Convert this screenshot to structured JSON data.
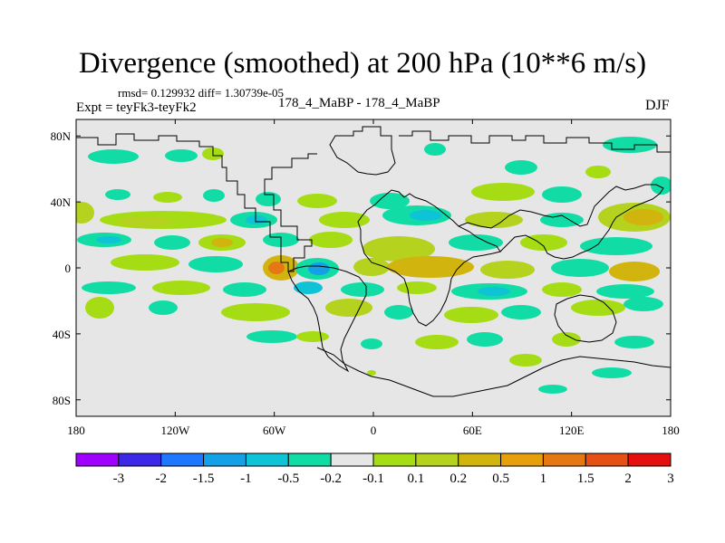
{
  "title": "Divergence (smoothed) at 200 hPa (10**6 m/s)",
  "stats": "rmsd= 0.129932 diff= 1.30739e-05",
  "experiment": "Expt = teyFk3-teyFk2",
  "runs": "178_4_MaBP - 178_4_MaBP",
  "season": "DJF",
  "map": {
    "lat_range": [
      -90,
      90
    ],
    "lon_range": [
      -180,
      180
    ],
    "lat_ticks": [
      {
        "value": 80,
        "label": "80N"
      },
      {
        "value": 40,
        "label": "40N"
      },
      {
        "value": 0,
        "label": "0"
      },
      {
        "value": -40,
        "label": "40S"
      },
      {
        "value": -80,
        "label": "80S"
      }
    ],
    "lon_ticks": [
      {
        "value": -180,
        "label": "180"
      },
      {
        "value": -120,
        "label": "120W"
      },
      {
        "value": -60,
        "label": "60W"
      },
      {
        "value": 0,
        "label": "0"
      },
      {
        "value": 60,
        "label": "60E"
      },
      {
        "value": 120,
        "label": "120E"
      },
      {
        "value": 180,
        "label": "180"
      }
    ],
    "background_color": "#e6e6e6"
  },
  "colorbar": {
    "colors": [
      "#a000ff",
      "#3c28e6",
      "#1e78ff",
      "#14a0e6",
      "#0fc3d7",
      "#12dca5",
      "#e6e6e6",
      "#a5dc14",
      "#b4d21e",
      "#d2b40f",
      "#e6a00a",
      "#e67814",
      "#e65014",
      "#e60f0f"
    ],
    "labels": [
      "-3",
      "-2",
      "-1.5",
      "-1",
      "-0.5",
      "-0.2",
      "-0.1",
      "0.1",
      "0.2",
      "0.5",
      "1",
      "1.5",
      "2",
      "3"
    ]
  }
}
